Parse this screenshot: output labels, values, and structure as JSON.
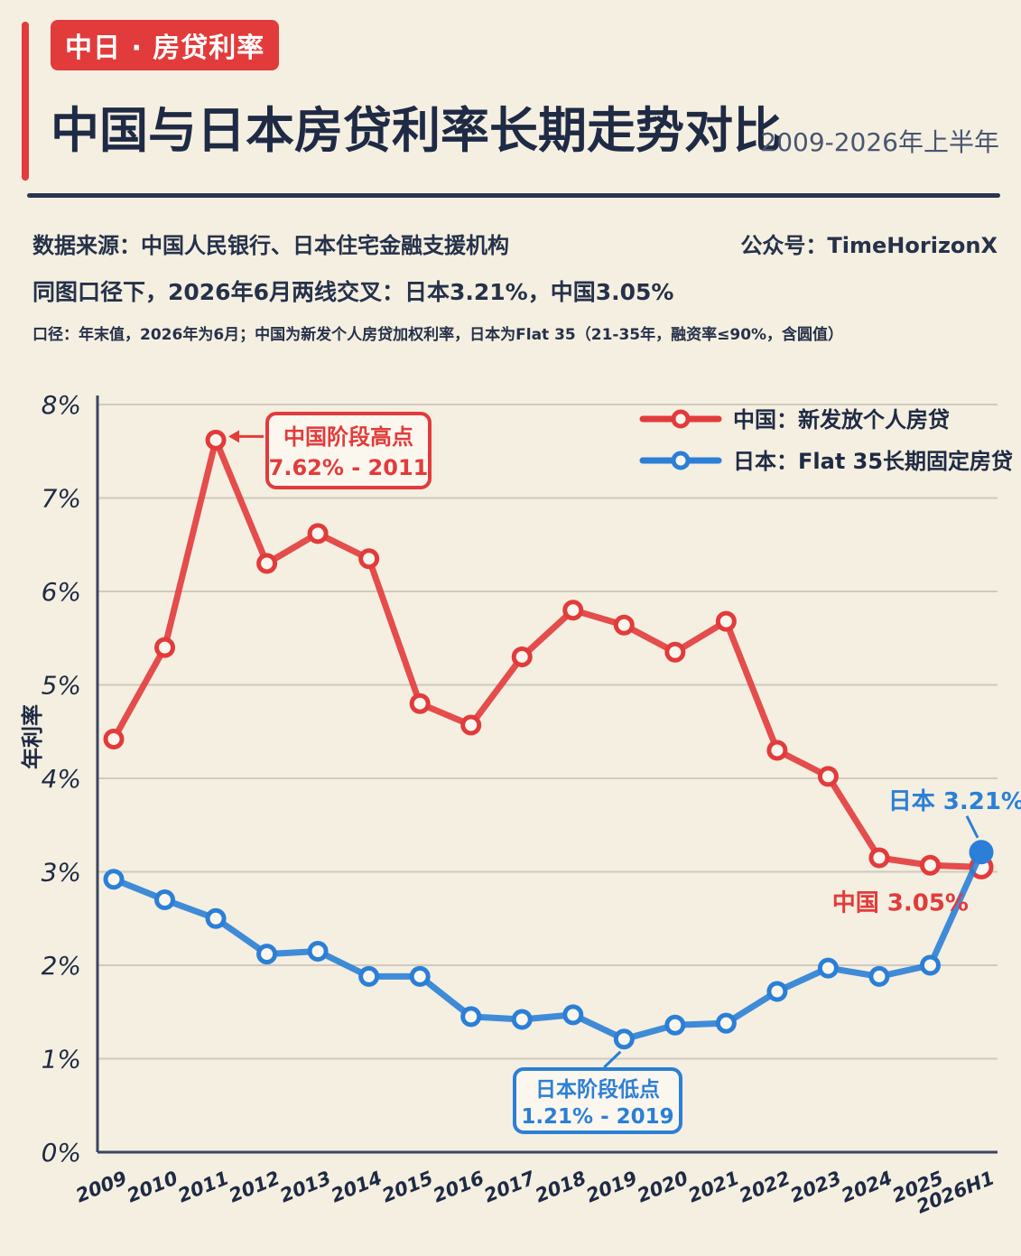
{
  "header": {
    "tag": "中日 · 房贷利率",
    "title": "中国与日本房贷利率长期走势对比",
    "subtitle": "2009-2026年上半年",
    "source": "数据来源：中国人民银行、日本住宅金融支援机构",
    "account": "公众号：TimeHorizonX",
    "crossing_note": "同图口径下，2026年6月两线交叉：日本3.21%，中国3.05%",
    "method_note": "口径：年末值，2026年为6月；中国为新发个人房贷加权利率，日本为Flat 35（21-35年，融资率≤90%，含圆值）"
  },
  "chart_data": {
    "type": "line",
    "title": "中国与日本房贷利率长期走势对比",
    "xlabel": "",
    "ylabel": "年利率",
    "ylim": [
      0,
      8
    ],
    "yticks": [
      "0%",
      "1%",
      "2%",
      "3%",
      "4%",
      "5%",
      "6%",
      "7%",
      "8%"
    ],
    "grid": "horizontal",
    "legend_position": "top-right",
    "categories": [
      "2009",
      "2010",
      "2011",
      "2012",
      "2013",
      "2014",
      "2015",
      "2016",
      "2017",
      "2018",
      "2019",
      "2020",
      "2021",
      "2022",
      "2023",
      "2024",
      "2025",
      "2026H1"
    ],
    "series": [
      {
        "name": "中国：新发放个人房贷",
        "color": "#e23b3b",
        "values": [
          4.42,
          5.4,
          7.62,
          6.3,
          6.62,
          6.35,
          4.8,
          4.57,
          5.3,
          5.8,
          5.64,
          5.35,
          5.68,
          4.3,
          4.02,
          3.15,
          3.07,
          3.05
        ]
      },
      {
        "name": "日本：Flat 35长期固定房贷",
        "color": "#2b7fd6",
        "values": [
          2.92,
          2.7,
          2.5,
          2.12,
          2.15,
          1.88,
          1.88,
          1.45,
          1.42,
          1.47,
          1.21,
          1.36,
          1.38,
          1.72,
          1.97,
          1.88,
          2.0,
          3.21
        ]
      }
    ],
    "annotations": [
      {
        "text_line1": "中国阶段高点",
        "text_line2": "7.62% - 2011",
        "color": "#e23b3b",
        "series": 0,
        "index": 2
      },
      {
        "text_line1": "日本阶段低点",
        "text_line2": "1.21% - 2019",
        "color": "#2b7fd6",
        "series": 1,
        "index": 10
      },
      {
        "text": "日本 3.21%",
        "color": "#2b7fd6",
        "series": 1,
        "index": 17
      },
      {
        "text": "中国 3.05%",
        "color": "#e23b3b",
        "series": 0,
        "index": 17
      }
    ]
  }
}
